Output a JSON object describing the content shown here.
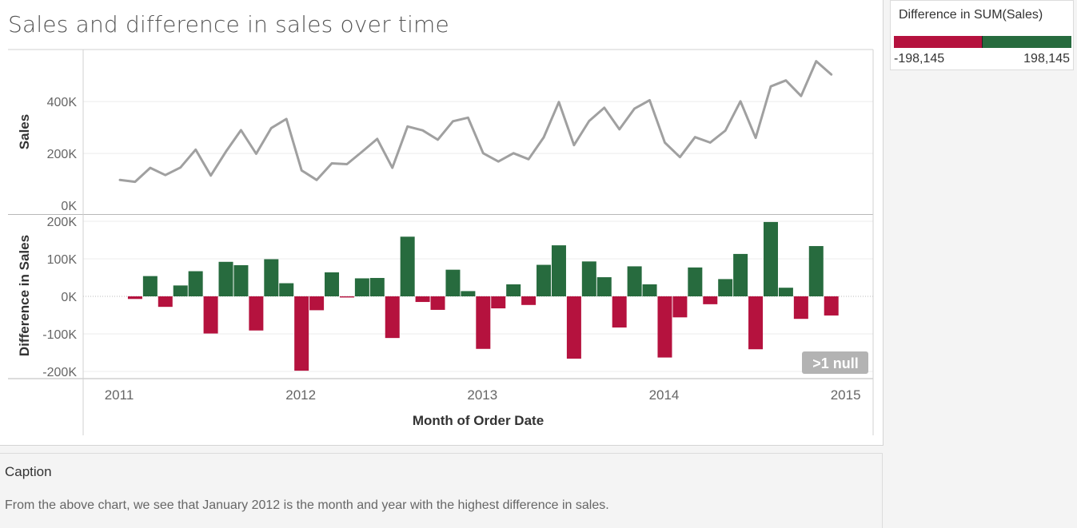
{
  "title": "Sales and difference in sales over time",
  "legend": {
    "title": "Difference in SUM(Sales)",
    "min_label": "-198,145",
    "max_label": "198,145",
    "neg_color": "#b5123e",
    "pos_color": "#276b3e"
  },
  "caption": {
    "title": "Caption",
    "text": "From the above chart, we see that January 2012 is the month and year with the highest difference in sales."
  },
  "null_badge": ">1 null",
  "chart_data": [
    {
      "type": "line",
      "ylabel": "Sales",
      "y_ticks": [
        {
          "value": 0,
          "label": "0K"
        },
        {
          "value": 200000,
          "label": "200K"
        },
        {
          "value": 400000,
          "label": "400K"
        }
      ],
      "ylim": [
        -30000,
        600000
      ],
      "grid": true,
      "line_color": "#a0a0a0",
      "x_start": "2011-01",
      "values": [
        98000,
        91000,
        145000,
        117000,
        146000,
        215000,
        115000,
        207000,
        290000,
        199000,
        298000,
        333000,
        135000,
        98000,
        162000,
        159000,
        207000,
        256000,
        145000,
        304000,
        289000,
        253000,
        324000,
        338000,
        201000,
        169000,
        201000,
        178000,
        262000,
        398000,
        232000,
        325000,
        376000,
        293000,
        373000,
        405000,
        242000,
        186000,
        263000,
        242000,
        288000,
        401000,
        260000,
        458000,
        481000,
        421000,
        555000,
        504000
      ]
    },
    {
      "type": "bar",
      "ylabel": "Difference in Sales",
      "y_ticks": [
        {
          "value": -200000,
          "label": "-200K"
        },
        {
          "value": -100000,
          "label": "-100K"
        },
        {
          "value": 0,
          "label": "0K"
        },
        {
          "value": 100000,
          "label": "100K"
        },
        {
          "value": 200000,
          "label": "200K"
        }
      ],
      "ylim": [
        -215000,
        215000
      ],
      "grid": true,
      "x_start": "2011-01",
      "values": [
        null,
        -7000,
        54000,
        -28000,
        29000,
        67000,
        -99000,
        92000,
        83000,
        -91000,
        99000,
        35000,
        -198145,
        -37000,
        64000,
        -3000,
        48000,
        49000,
        -111000,
        159000,
        -15000,
        -36000,
        71000,
        14000,
        -140000,
        -32000,
        32000,
        -23000,
        84000,
        136000,
        -166000,
        93000,
        51000,
        -83000,
        80000,
        32000,
        -163000,
        -56000,
        77000,
        -21000,
        46000,
        113000,
        -141000,
        198145,
        23000,
        -60000,
        134000,
        -51000
      ]
    }
  ],
  "x_axis": {
    "label": "Month of Order Date",
    "ticks": [
      "2011",
      "2012",
      "2013",
      "2014",
      "2015"
    ]
  }
}
